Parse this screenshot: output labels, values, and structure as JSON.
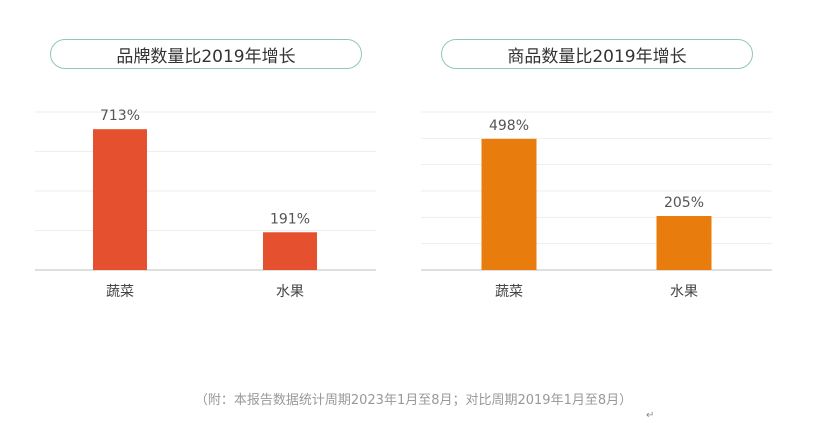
{
  "chart_data": [
    {
      "type": "bar",
      "title": "品牌数量比2019年增长",
      "categories": [
        "蔬菜",
        "水果"
      ],
      "values": [
        713,
        191
      ],
      "value_labels": [
        "713%",
        "191%"
      ],
      "unit": "%",
      "ylim": [
        0,
        800
      ],
      "grid": true,
      "color": "#e5502e"
    },
    {
      "type": "bar",
      "title": "商品数量比2019年增长",
      "categories": [
        "蔬菜",
        "水果"
      ],
      "values": [
        498,
        205
      ],
      "value_labels": [
        "498%",
        "205%"
      ],
      "unit": "%",
      "ylim": [
        0,
        600
      ],
      "grid": true,
      "color": "#e87d0d"
    }
  ],
  "footnote": "（附：本报告数据统计周期2023年1月至8月；对比周期2019年1月至8月）",
  "return_mark": "↵"
}
